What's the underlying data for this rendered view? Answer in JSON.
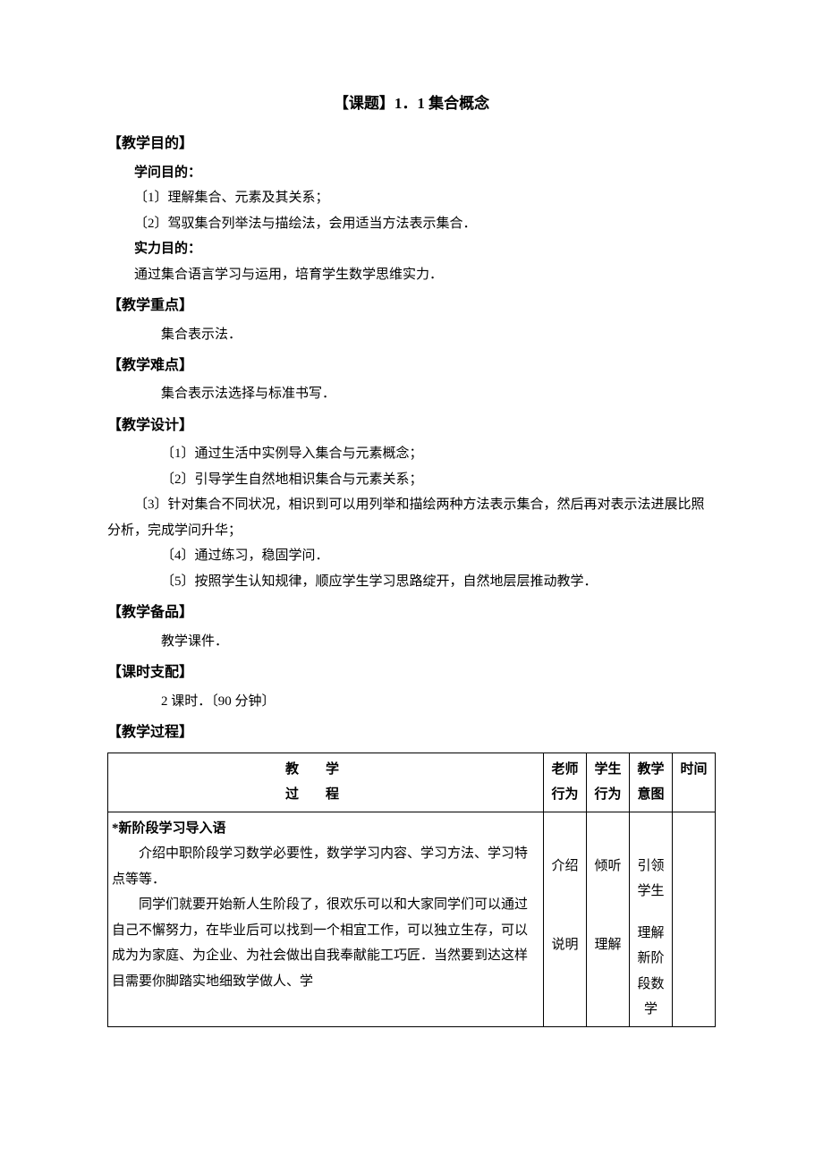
{
  "title": "【课题】1．1  集合概念",
  "sections": {
    "objective": {
      "heading": "【教学目的】",
      "knowledge_label": "学问目的：",
      "k1": "〔1〕理解集合、元素及其关系；",
      "k2": "〔2〕驾驭集合列举法与描绘法，会用适当方法表示集合．",
      "ability_label": "实力目的：",
      "a1": "通过集合语言学习与运用，培育学生数学思维实力．"
    },
    "keypoint": {
      "heading": "【教学重点】",
      "p1": "集合表示法．"
    },
    "difficulty": {
      "heading": "【教学难点】",
      "p1": "集合表示法选择与标准书写．"
    },
    "design": {
      "heading": "【教学设计】",
      "p1": "〔1〕通过生活中实例导入集合与元素概念；",
      "p2": "〔2〕引导学生自然地相识集合与元素关系；",
      "p3": "〔3〕针对集合不同状况，相识到可以用列举和描绘两种方法表示集合，然后再对表示法进展比照分析，完成学问升华；",
      "p4": "〔4〕通过练习，稳固学问．",
      "p5": "〔5〕按照学生认知规律，顺应学生学习思路绽开，自然地层层推动教学．"
    },
    "materials": {
      "heading": "【教学备品】",
      "p1": "教学课件．"
    },
    "hours": {
      "heading": "【课时支配】",
      "p1": "2 课时．〔90 分钟〕"
    },
    "process": {
      "heading": "【教学过程】"
    }
  },
  "table": {
    "header": {
      "process1": "教学",
      "process2": "过程",
      "teacher": "老师行为",
      "student": "学生行为",
      "intent": "教学意图",
      "time": "时间"
    },
    "row1": {
      "proc_title": "*新阶段学习导入语",
      "proc_p1": "介绍中职阶段学习数学必要性，数学学习内容、学习方法、学习特点等等．",
      "proc_p2": "同学们就要开始新人生阶段了，很欢乐可以和大家同学们可以通过自己不懈努力，在毕业后可以找到一个相宜工作，可以独立生存，可以成为为家庭、为企业、为社会做出自我奉献能工巧匠．当然要到达这样目需要你脚踏实地细致学做人、学",
      "teacher1": "介绍",
      "teacher2": "说明",
      "student1": "倾听",
      "student2": "理解",
      "intent1": "引领学生",
      "intent2": "理解新阶段数学",
      "time": ""
    }
  }
}
